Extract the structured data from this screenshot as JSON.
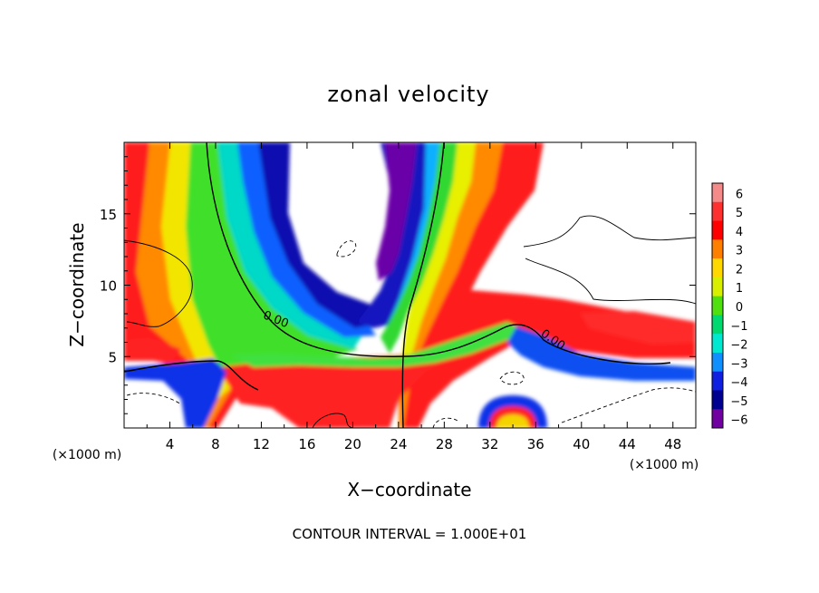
{
  "chart_data": {
    "type": "heatmap",
    "title": "zonal velocity",
    "xlabel": "X−coordinate",
    "ylabel": "Z−coordinate",
    "x_unit_left": "(×1000 m)",
    "x_unit_right": "(×1000 m)",
    "xlim": [
      0,
      50
    ],
    "ylim": [
      0,
      20
    ],
    "x_ticks": [
      4,
      8,
      12,
      16,
      20,
      24,
      28,
      32,
      36,
      40,
      44,
      48
    ],
    "x_tick_labels": [
      "4",
      "8",
      "12",
      "16",
      "20",
      "24",
      "28",
      "32",
      "36",
      "40",
      "44",
      "48"
    ],
    "y_ticks": [
      5,
      10,
      15
    ],
    "y_tick_labels": [
      "5",
      "10",
      "15"
    ],
    "colorbar": {
      "levels": [
        6,
        5,
        4,
        3,
        2,
        1,
        0,
        -1,
        -2,
        -3,
        -4,
        -5,
        -6
      ],
      "labels": [
        "6",
        "5",
        "4",
        "3",
        "2",
        "1",
        "0",
        "−1",
        "−2",
        "−3",
        "−4",
        "−5",
        "−6"
      ],
      "colors": [
        "#f48a8a",
        "#ff3030",
        "#ff0000",
        "#ff8000",
        "#ffd800",
        "#d8f000",
        "#50e010",
        "#00d870",
        "#00e8d0",
        "#1090ff",
        "#1020e0",
        "#000090",
        "#7000a0"
      ]
    },
    "contour_labels": [
      {
        "text": "0.00",
        "x": 13.3,
        "z": 7.6
      },
      {
        "text": "0.00",
        "x": 37.2,
        "z": 6.2
      }
    ],
    "footnote": "CONTOUR INTERVAL = 1.000E+01"
  }
}
